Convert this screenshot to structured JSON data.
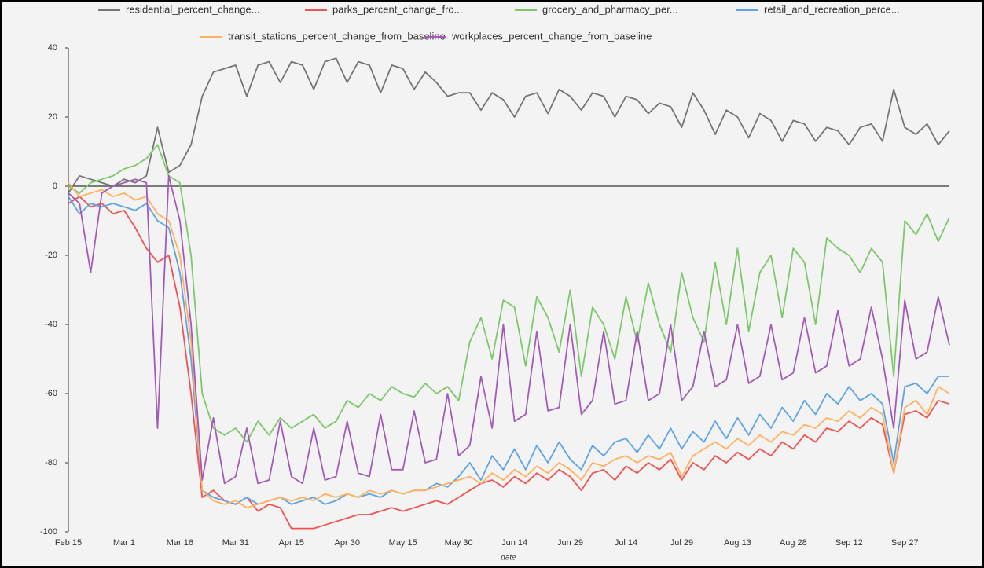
{
  "chart_data": {
    "type": "line",
    "x_label": "date",
    "categories": [
      "Feb 15",
      null,
      null,
      null,
      null,
      "Mar 1",
      null,
      null,
      null,
      null,
      "Mar 16",
      null,
      null,
      null,
      null,
      "Mar 31",
      null,
      null,
      null,
      null,
      "Apr 15",
      null,
      null,
      null,
      null,
      "Apr 30",
      null,
      null,
      null,
      null,
      "May 15",
      null,
      null,
      null,
      null,
      "May 30",
      null,
      null,
      null,
      null,
      "Jun 14",
      null,
      null,
      null,
      null,
      "Jun 29",
      null,
      null,
      null,
      null,
      "Jul 14",
      null,
      null,
      null,
      null,
      "Jul 29",
      null,
      null,
      null,
      null,
      "Aug 13",
      null,
      null,
      null,
      null,
      "Aug 28",
      null,
      null,
      null,
      null,
      "Sep 12",
      null,
      null,
      null,
      null,
      "Sep 27",
      null,
      null,
      null,
      null
    ],
    "ylim": [
      -100,
      40
    ],
    "yticks": [
      -100,
      -80,
      -60,
      -40,
      -20,
      0,
      20,
      40
    ],
    "zero_line": true,
    "series": [
      {
        "name": "residential_percent_change...",
        "color": "#757575",
        "values": [
          -2,
          3,
          2,
          1,
          0,
          2,
          1,
          3,
          17,
          4,
          6,
          12,
          26,
          33,
          34,
          35,
          26,
          35,
          36,
          30,
          36,
          35,
          28,
          36,
          37,
          30,
          36,
          35,
          27,
          35,
          34,
          28,
          33,
          30,
          26,
          27,
          27,
          22,
          27,
          25,
          20,
          26,
          27,
          21,
          28,
          26,
          22,
          27,
          26,
          20,
          26,
          25,
          21,
          24,
          23,
          17,
          27,
          22,
          15,
          22,
          20,
          14,
          21,
          19,
          13,
          19,
          18,
          13,
          17,
          16,
          12,
          17,
          18,
          13,
          28,
          17,
          15,
          18,
          12,
          16
        ]
      },
      {
        "name": "parks_percent_change_fro...",
        "color": "#ef5350",
        "values": [
          -5,
          -3,
          -6,
          -5,
          -8,
          -7,
          -12,
          -18,
          -22,
          -20,
          -35,
          -60,
          -90,
          -88,
          -91,
          -92,
          -90,
          -94,
          -92,
          -93,
          -99,
          -99,
          -99,
          -98,
          -97,
          -96,
          -95,
          -95,
          -94,
          -93,
          -94,
          -93,
          -92,
          -91,
          -92,
          -90,
          -88,
          -86,
          -85,
          -87,
          -84,
          -86,
          -83,
          -85,
          -82,
          -84,
          -88,
          -83,
          -82,
          -85,
          -81,
          -83,
          -80,
          -82,
          -79,
          -85,
          -80,
          -82,
          -78,
          -80,
          -77,
          -79,
          -76,
          -78,
          -74,
          -76,
          -72,
          -74,
          -70,
          -71,
          -68,
          -70,
          -67,
          -69,
          -83,
          -66,
          -65,
          -67,
          -62,
          -63
        ]
      },
      {
        "name": "grocery_and_pharmacy_per...",
        "color": "#7cc86a",
        "values": [
          0,
          -2,
          1,
          2,
          3,
          5,
          6,
          8,
          12,
          3,
          1,
          -20,
          -60,
          -70,
          -72,
          -70,
          -74,
          -68,
          -72,
          -67,
          -70,
          -68,
          -66,
          -70,
          -68,
          -62,
          -64,
          -60,
          -62,
          -58,
          -60,
          -61,
          -57,
          -60,
          -58,
          -62,
          -45,
          -38,
          -50,
          -33,
          -35,
          -52,
          -32,
          -38,
          -48,
          -30,
          -55,
          -35,
          -40,
          -50,
          -32,
          -45,
          -28,
          -40,
          -48,
          -25,
          -38,
          -45,
          -22,
          -40,
          -18,
          -42,
          -25,
          -20,
          -38,
          -18,
          -22,
          -40,
          -15,
          -18,
          -20,
          -25,
          -18,
          -22,
          -55,
          -10,
          -14,
          -8,
          -16,
          -9
        ]
      },
      {
        "name": "retail_and_recreation_perce...",
        "color": "#5ea3e3",
        "values": [
          -3,
          -8,
          -5,
          -6,
          -5,
          -6,
          -7,
          -5,
          -10,
          -12,
          -25,
          -50,
          -88,
          -90,
          -91,
          -92,
          -90,
          -92,
          -91,
          -90,
          -92,
          -91,
          -90,
          -92,
          -91,
          -89,
          -90,
          -89,
          -90,
          -88,
          -89,
          -88,
          -88,
          -86,
          -87,
          -84,
          -80,
          -85,
          -78,
          -82,
          -76,
          -82,
          -75,
          -80,
          -74,
          -79,
          -82,
          -75,
          -78,
          -74,
          -73,
          -77,
          -72,
          -76,
          -70,
          -76,
          -71,
          -74,
          -68,
          -73,
          -67,
          -72,
          -66,
          -70,
          -64,
          -68,
          -62,
          -66,
          -60,
          -63,
          -58,
          -62,
          -60,
          -63,
          -80,
          -58,
          -57,
          -60,
          -55,
          -55
        ]
      },
      {
        "name": "transit_stations_percent_change_from_baseline",
        "color": "#ffb15e",
        "values": [
          1,
          -3,
          -2,
          -1,
          -3,
          -2,
          -4,
          -3,
          -8,
          -10,
          -20,
          -45,
          -88,
          -91,
          -92,
          -91,
          -93,
          -92,
          -91,
          -90,
          -91,
          -90,
          -91,
          -89,
          -90,
          -89,
          -90,
          -88,
          -89,
          -88,
          -89,
          -88,
          -88,
          -87,
          -86,
          -85,
          -84,
          -86,
          -83,
          -85,
          -82,
          -84,
          -81,
          -83,
          -80,
          -82,
          -85,
          -80,
          -81,
          -79,
          -78,
          -80,
          -78,
          -79,
          -77,
          -84,
          -78,
          -76,
          -74,
          -76,
          -73,
          -75,
          -72,
          -74,
          -71,
          -72,
          -69,
          -70,
          -67,
          -68,
          -65,
          -67,
          -64,
          -66,
          -83,
          -64,
          -62,
          -66,
          -58,
          -60
        ]
      },
      {
        "name": "workplaces_percent_change_from_baseline",
        "color": "#a35ab8",
        "values": [
          -2,
          -5,
          -25,
          -2,
          0,
          1,
          2,
          1,
          -70,
          3,
          -10,
          -40,
          -85,
          -67,
          -86,
          -84,
          -70,
          -86,
          -85,
          -68,
          -84,
          -86,
          -70,
          -85,
          -84,
          -68,
          -83,
          -84,
          -66,
          -82,
          -82,
          -65,
          -80,
          -79,
          -60,
          -78,
          -75,
          -55,
          -70,
          -40,
          -68,
          -66,
          -42,
          -65,
          -64,
          -40,
          -66,
          -62,
          -42,
          -63,
          -62,
          -42,
          -62,
          -60,
          -40,
          -62,
          -58,
          -42,
          -58,
          -56,
          -40,
          -57,
          -55,
          -40,
          -56,
          -54,
          -38,
          -54,
          -52,
          -36,
          -52,
          -50,
          -35,
          -50,
          -70,
          -33,
          -50,
          -48,
          -32,
          -46
        ]
      }
    ]
  }
}
